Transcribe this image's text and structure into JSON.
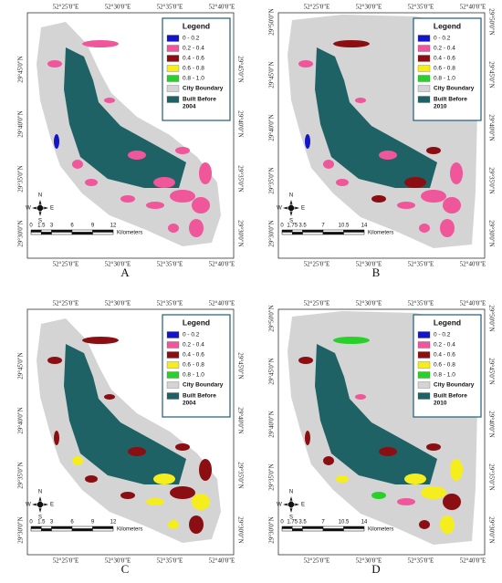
{
  "compass": [
    "N",
    "S",
    "W",
    "E"
  ],
  "colors": {
    "boundary": "#d4d4d4",
    "built": "#1f6266"
  },
  "legend_title": "Legend",
  "classes": [
    {
      "label": "0 - 0.2",
      "color": "#1414c8"
    },
    {
      "label": "0.2 - 0.4",
      "color": "#f0569a"
    },
    {
      "label": "0.4 - 0.6",
      "color": "#8b0f12"
    },
    {
      "label": "0.6 - 0.8",
      "color": "#f5ee1c"
    },
    {
      "label": "0.8 - 1.0",
      "color": "#2ad02a"
    }
  ],
  "boundary_label": "City Boundary",
  "panels": [
    {
      "label": "A",
      "top": [
        "52°25'0\"E",
        "52°30'0\"E",
        "52°35'0\"E",
        "52°40'0\"E"
      ],
      "bottom": [
        "52°25'0\"E",
        "52°30'0\"E",
        "52°35'0\"E",
        "52°40'0\"E"
      ],
      "left": [
        "29°45'0\"N",
        "29°40'0\"N",
        "29°35'0\"N",
        "29°30'0\"N"
      ],
      "right": [
        "29°45'0\"N",
        "29°40'0\"N",
        "29°35'0\"N",
        "29°30'0\"N"
      ],
      "built_label": [
        "Built Before",
        "2004"
      ],
      "scale": [
        0,
        1.5,
        3,
        6,
        9,
        12
      ],
      "scale_unit": "Kilometers"
    },
    {
      "label": "B",
      "top": [
        "52°25'0\"E",
        "52°30'0\"E",
        "52°35'0\"E",
        "52°40'0\"E"
      ],
      "bottom": [
        "52°25'0\"E",
        "52°30'0\"E",
        "52°35'0\"E",
        "52°40'0\"E"
      ],
      "left": [
        "29°50'0\"N",
        "29°45'0\"N",
        "29°40'0\"N",
        "29°35'0\"N",
        "29°30'0\"N"
      ],
      "right": [
        "29°50'0\"N",
        "29°45'0\"N",
        "29°40'0\"N",
        "29°35'0\"N",
        "29°30'0\"N"
      ],
      "built_label": [
        "Built Before",
        "2010"
      ],
      "scale": [
        0,
        1.75,
        3.5,
        7,
        10.5,
        14
      ],
      "scale_unit": "Kilometers"
    },
    {
      "label": "C",
      "top": [
        "52°25'0\"E",
        "52°30'0\"E",
        "52°35'0\"E",
        "52°40'0\"E"
      ],
      "bottom": [
        "52°25'0\"E",
        "52°30'0\"E",
        "52°35'0\"E",
        "52°40'0\"E"
      ],
      "left": [
        "29°45'0\"N",
        "29°40'0\"N",
        "29°35'0\"N",
        "29°30'0\"N"
      ],
      "right": [
        "29°45'0\"N",
        "29°40'0\"N",
        "29°35'0\"N",
        "29°30'0\"N"
      ],
      "built_label": [
        "Built Before",
        "2004"
      ],
      "scale": [
        0,
        1.5,
        3,
        6,
        9,
        12
      ],
      "scale_unit": "Kilometers"
    },
    {
      "label": "D",
      "top": [
        "52°25'0\"E",
        "52°30'0\"E",
        "52°35'0\"E",
        "52°40'0\"E"
      ],
      "bottom": [
        "52°25'0\"E",
        "52°30'0\"E",
        "52°35'0\"E",
        "52°40'0\"E"
      ],
      "left": [
        "29°50'0\"N",
        "29°45'0\"N",
        "29°40'0\"N",
        "29°35'0\"N",
        "29°30'0\"N"
      ],
      "right": [
        "29°50'0\"N",
        "29°45'0\"N",
        "29°40'0\"N",
        "29°35'0\"N",
        "29°30'0\"N"
      ],
      "built_label": [
        "Built Before",
        "2010"
      ],
      "scale": [
        0,
        1.75,
        3.5,
        7,
        10.5,
        14
      ],
      "scale_unit": "Kilometers"
    }
  ]
}
